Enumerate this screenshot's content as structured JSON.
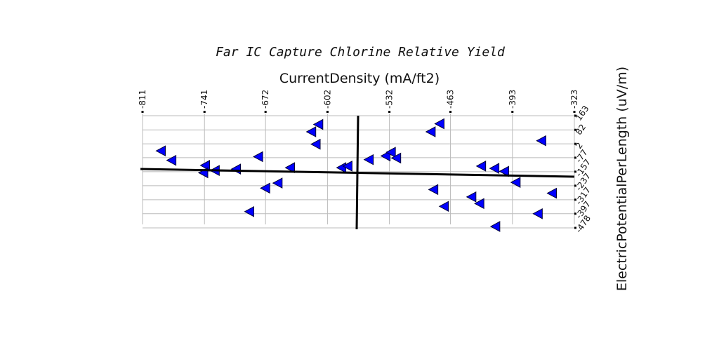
{
  "chart_data": {
    "type": "scatter",
    "title": "Far IC Capture Chlorine Relative Yield",
    "xlabel": "CurrentDensity (mA/ft2)",
    "ylabel": "ElectricPotentialPerLength (uV/m)",
    "xlim": [
      -811,
      -323
    ],
    "ylim": [
      -478,
      163
    ],
    "xticks": [
      -811,
      -741,
      -672,
      -602,
      -532,
      -463,
      -393,
      -323
    ],
    "yticks": [
      163,
      82,
      2,
      -77,
      -157,
      -237,
      -317,
      -397,
      -478
    ],
    "grid": true,
    "color": "#0000ff",
    "marker": "triangle-left",
    "x": [
      -790,
      -778,
      -740,
      -742,
      -729,
      -705,
      -680,
      -690,
      -672,
      -658,
      -644,
      -620,
      -612,
      -615,
      -586,
      -579,
      -555,
      -536,
      -530,
      -524,
      -485,
      -475,
      -482,
      -470,
      -439,
      -430,
      -428,
      -413,
      -402,
      -389,
      -412,
      -360,
      -348,
      -364
    ],
    "y": [
      -38,
      -92,
      -121,
      -163,
      -150,
      -142,
      -71,
      -385,
      -251,
      -222,
      -134,
      71,
      113,
      0,
      -134,
      -125,
      -88,
      -67,
      -46,
      -79,
      71,
      117,
      -259,
      -355,
      -301,
      -339,
      -125,
      -138,
      -155,
      -218,
      -470,
      20,
      -280,
      -397
    ]
  }
}
